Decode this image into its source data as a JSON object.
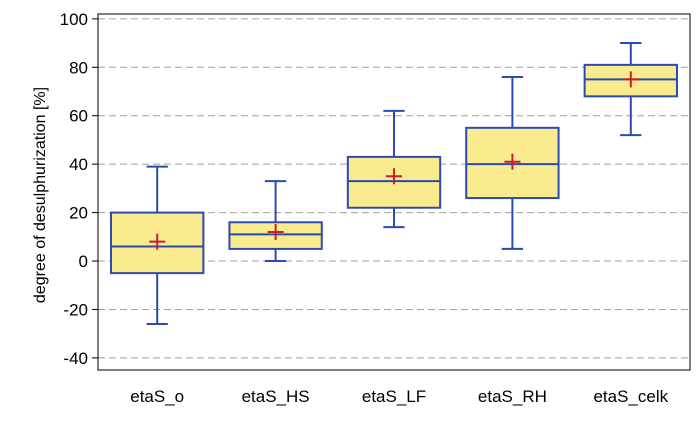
{
  "chart_data": {
    "type": "box",
    "title": "",
    "xlabel": "",
    "ylabel": "degree of desulphurization [%]",
    "ylim": [
      -45,
      102
    ],
    "yticks": [
      -40,
      -20,
      0,
      20,
      40,
      60,
      80,
      100
    ],
    "grid": "horizontal-dashed",
    "categories": [
      "etaS_o",
      "etaS_HS",
      "etaS_LF",
      "etaS_RH",
      "etaS_celk"
    ],
    "boxes": [
      {
        "min": -26,
        "q1": -5,
        "median": 6,
        "q3": 20,
        "max": 39,
        "mean": 8
      },
      {
        "min": 0,
        "q1": 5,
        "median": 11,
        "q3": 16,
        "max": 33,
        "mean": 12
      },
      {
        "min": 14,
        "q1": 22,
        "median": 33,
        "q3": 43,
        "max": 62,
        "mean": 35
      },
      {
        "min": 5,
        "q1": 26,
        "median": 40,
        "q3": 55,
        "max": 76,
        "mean": 41
      },
      {
        "min": 52,
        "q1": 68,
        "median": 75,
        "q3": 81,
        "max": 90,
        "mean": 75
      }
    ],
    "colors": {
      "box_fill": "#fbeb8f",
      "box_stroke": "#2b4bb0",
      "mean_marker": "#c8202a",
      "grid": "#a0a0a0",
      "axis": "#000000"
    }
  }
}
